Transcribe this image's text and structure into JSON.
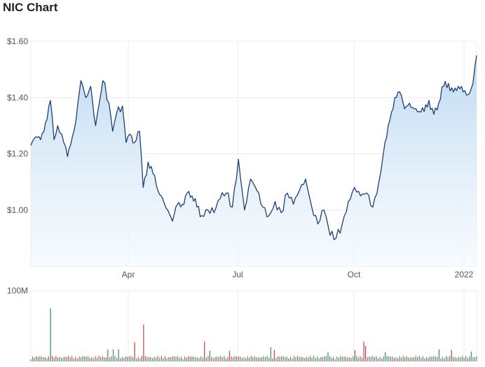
{
  "title": "NIC Chart",
  "chart_data": [
    {
      "type": "line",
      "title": "NIC Chart",
      "xlabel": "",
      "ylabel": "",
      "x_ticks": [
        "Apr",
        "Jul",
        "Oct",
        "2022"
      ],
      "x_range": [
        0,
        365
      ],
      "ylim": [
        0.8,
        1.6
      ],
      "y_ticks": [
        "$1.60",
        "$1.40",
        "$1.20",
        "$1.00"
      ],
      "y_tick_values": [
        1.6,
        1.4,
        1.2,
        1.0
      ],
      "grid": true,
      "colors": {
        "line": "#1f3f73",
        "fill_top": "#bcd8f1",
        "fill_bottom": "#f2f8fd",
        "grid": "#ececec"
      },
      "series": [
        {
          "x": [
            0,
            4,
            8,
            12,
            16,
            19,
            22,
            27,
            30,
            34,
            37,
            41,
            45,
            49,
            53,
            56,
            59,
            64,
            67,
            70,
            75,
            78,
            81,
            85,
            89,
            92,
            96,
            100,
            104,
            108,
            112,
            116,
            120,
            124,
            128,
            132,
            136,
            140,
            145,
            150,
            155,
            160,
            165,
            170,
            175,
            180,
            185,
            190,
            195,
            200,
            205,
            210,
            215,
            220,
            225,
            230,
            235,
            240,
            245,
            250,
            255,
            260,
            265,
            270,
            275,
            280,
            285,
            290,
            294,
            298,
            302,
            306,
            310,
            314,
            318,
            322,
            326,
            330,
            334,
            338,
            342,
            346,
            350,
            354,
            358,
            362,
            365
          ],
          "values": [
            1.23,
            1.26,
            1.25,
            1.31,
            1.39,
            1.25,
            1.3,
            1.24,
            1.19,
            1.26,
            1.32,
            1.46,
            1.4,
            1.44,
            1.3,
            1.38,
            1.46,
            1.38,
            1.28,
            1.34,
            1.37,
            1.24,
            1.27,
            1.24,
            1.28,
            1.08,
            1.17,
            1.13,
            1.07,
            1.04,
            1.0,
            0.96,
            1.02,
            1.02,
            1.06,
            1.05,
            1.01,
            0.98,
            1.0,
            0.99,
            1.04,
            1.06,
            1.01,
            1.18,
            1.0,
            1.11,
            1.07,
            1.01,
            0.98,
            1.03,
            0.99,
            1.06,
            1.02,
            1.07,
            1.11,
            1.01,
            0.95,
            1.0,
            0.91,
            0.9,
            0.95,
            1.03,
            1.08,
            1.05,
            1.06,
            1.01,
            1.1,
            1.24,
            1.32,
            1.4,
            1.42,
            1.36,
            1.38,
            1.36,
            1.35,
            1.35,
            1.39,
            1.34,
            1.38,
            1.44,
            1.45,
            1.42,
            1.44,
            1.42,
            1.41,
            1.45,
            1.55
          ]
        }
      ]
    },
    {
      "type": "bar",
      "title": "",
      "xlabel": "",
      "ylabel": "",
      "ylim": [
        0,
        100
      ],
      "y_ticks": [
        "100M"
      ],
      "y_tick_values": [
        100
      ],
      "units": "M",
      "colors": {
        "up": "#3a9a7a",
        "down": "#c45656",
        "spike_up": "#2f8f6e",
        "spike_down": "#c04040"
      },
      "baseline_bars": 250,
      "spikes": [
        {
          "x": 16,
          "value": 75,
          "direction": "up"
        },
        {
          "x": 63,
          "value": 17,
          "direction": "up"
        },
        {
          "x": 67,
          "value": 17,
          "direction": "up"
        },
        {
          "x": 72,
          "value": 17,
          "direction": "up"
        },
        {
          "x": 85,
          "value": 27,
          "direction": "down"
        },
        {
          "x": 92,
          "value": 52,
          "direction": "down"
        },
        {
          "x": 142,
          "value": 28,
          "direction": "down"
        },
        {
          "x": 146,
          "value": 15,
          "direction": "up"
        },
        {
          "x": 162,
          "value": 15,
          "direction": "down"
        },
        {
          "x": 196,
          "value": 20,
          "direction": "up"
        },
        {
          "x": 200,
          "value": 16,
          "direction": "down"
        },
        {
          "x": 243,
          "value": 13,
          "direction": "up"
        },
        {
          "x": 265,
          "value": 16,
          "direction": "down"
        },
        {
          "x": 272,
          "value": 28,
          "direction": "down"
        },
        {
          "x": 274,
          "value": 22,
          "direction": "down"
        },
        {
          "x": 290,
          "value": 13,
          "direction": "up"
        },
        {
          "x": 334,
          "value": 17,
          "direction": "up"
        },
        {
          "x": 345,
          "value": 16,
          "direction": "down"
        },
        {
          "x": 361,
          "value": 14,
          "direction": "up"
        }
      ]
    }
  ]
}
